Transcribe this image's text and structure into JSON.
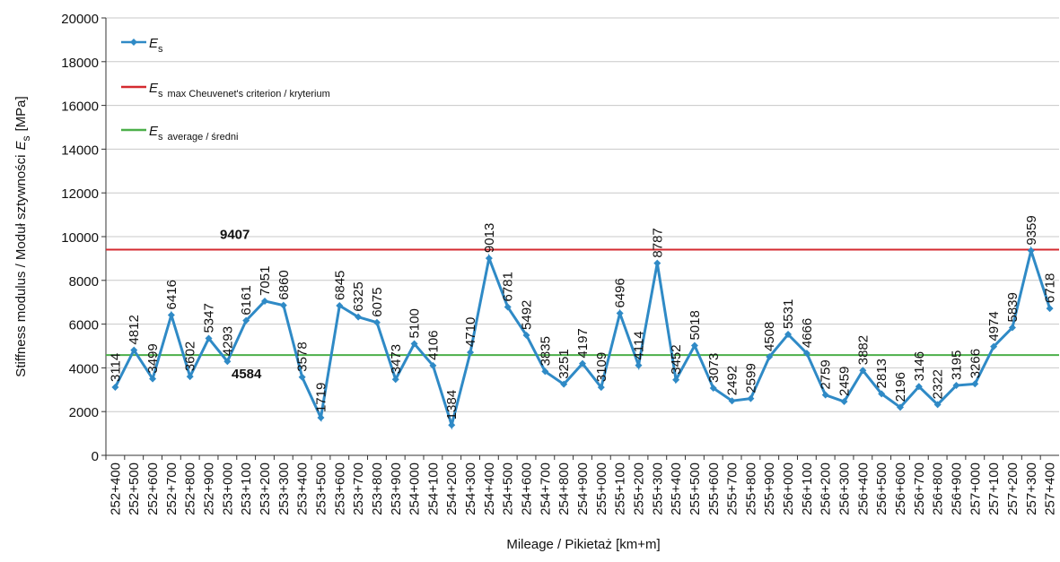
{
  "chart_data": {
    "type": "line",
    "x_label": "Mileage / Pikietaż [km+m]",
    "y_label": [
      "Stiffness modulus / Moduł sztywności",
      "E",
      "s",
      "[MPa]"
    ],
    "categories": [
      "252+400",
      "252+500",
      "252+600",
      "252+700",
      "252+800",
      "252+900",
      "253+000",
      "253+100",
      "253+200",
      "253+300",
      "253+400",
      "253+500",
      "253+600",
      "253+700",
      "253+800",
      "253+900",
      "254+000",
      "254+100",
      "254+200",
      "254+300",
      "254+400",
      "254+500",
      "254+600",
      "254+700",
      "254+800",
      "254+900",
      "255+000",
      "255+100",
      "255+200",
      "255+300",
      "255+400",
      "255+500",
      "255+600",
      "255+700",
      "255+800",
      "255+900",
      "256+000",
      "256+100",
      "256+200",
      "256+300",
      "256+400",
      "256+500",
      "256+600",
      "256+700",
      "256+800",
      "256+900",
      "257+000",
      "257+100",
      "257+200",
      "257+300",
      "257+400"
    ],
    "series": [
      {
        "name": "E",
        "name_sub": "s",
        "color": "#2f8ac6",
        "values": [
          3114,
          4812,
          3499,
          6416,
          3602,
          5347,
          4293,
          6161,
          7051,
          6860,
          3578,
          1719,
          6845,
          6325,
          6075,
          3473,
          5100,
          4106,
          1384,
          4710,
          9013,
          6781,
          5492,
          3835,
          3251,
          4197,
          3109,
          6496,
          4114,
          8787,
          3452,
          5018,
          3073,
          2492,
          2599,
          4508,
          5531,
          4666,
          2759,
          2459,
          3882,
          2813,
          2196,
          3146,
          2322,
          3195,
          3266,
          4974,
          5839,
          9359,
          6718
        ]
      }
    ],
    "reference_lines": [
      {
        "name": "E",
        "name_sub": "s",
        "name_note": "max Cheuvenet's criterion / kryterium",
        "value": 9407,
        "color": "#d42a2f"
      },
      {
        "name": "E",
        "name_sub": "s",
        "name_note": "average / średni",
        "value": 4584,
        "color": "#4caf4a"
      }
    ],
    "ylim": [
      0,
      20000
    ],
    "yticks": [
      0,
      2000,
      4000,
      6000,
      8000,
      10000,
      12000,
      14000,
      16000,
      18000,
      20000
    ],
    "grid": true
  }
}
